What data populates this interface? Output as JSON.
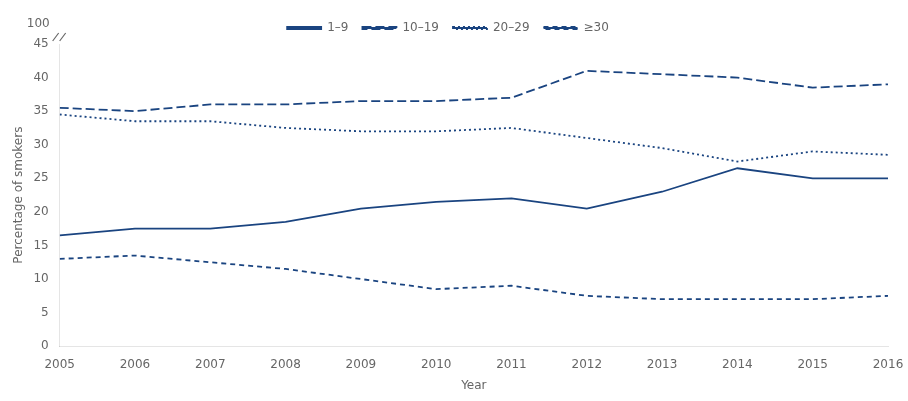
{
  "chart_data": {
    "type": "line",
    "x": [
      2005,
      2006,
      2007,
      2008,
      2009,
      2010,
      2011,
      2012,
      2013,
      2014,
      2015,
      2016
    ],
    "series": [
      {
        "name": "1–9",
        "color": "#1a4480",
        "line_style": "solid",
        "values": [
          16.5,
          17.5,
          17.5,
          18.5,
          20.5,
          21.5,
          22.0,
          20.5,
          23.0,
          26.5,
          25.0,
          25.0
        ]
      },
      {
        "name": "10–19",
        "color": "#1a4480",
        "line_style": "long_dash",
        "values": [
          35.5,
          35.0,
          36.0,
          36.0,
          36.5,
          36.5,
          37.0,
          41.0,
          40.5,
          40.0,
          38.5,
          39.0
        ]
      },
      {
        "name": "20–29",
        "color": "#1a4480",
        "line_style": "dotted",
        "values": [
          34.5,
          33.5,
          33.5,
          32.5,
          32.0,
          32.0,
          32.5,
          31.0,
          29.5,
          27.5,
          29.0,
          28.5
        ]
      },
      {
        "name": "≥30",
        "color": "#1a4480",
        "line_style": "dashed",
        "values": [
          13.0,
          13.5,
          12.5,
          11.5,
          10.0,
          8.5,
          9.0,
          7.5,
          7.0,
          7.0,
          7.0,
          7.5
        ]
      }
    ],
    "xlabel": "Year",
    "ylabel": "Percentage of smokers",
    "xlim": [
      2005,
      2016
    ],
    "xticks": [
      2005,
      2006,
      2007,
      2008,
      2009,
      2010,
      2011,
      2012,
      2013,
      2014,
      2015,
      2016
    ],
    "ylim": [
      0,
      45
    ],
    "yticks": [
      0,
      5,
      10,
      15,
      20,
      25,
      30,
      35,
      40,
      45
    ],
    "grid": false,
    "legend": "top",
    "annotations": [
      "100"
    ]
  }
}
